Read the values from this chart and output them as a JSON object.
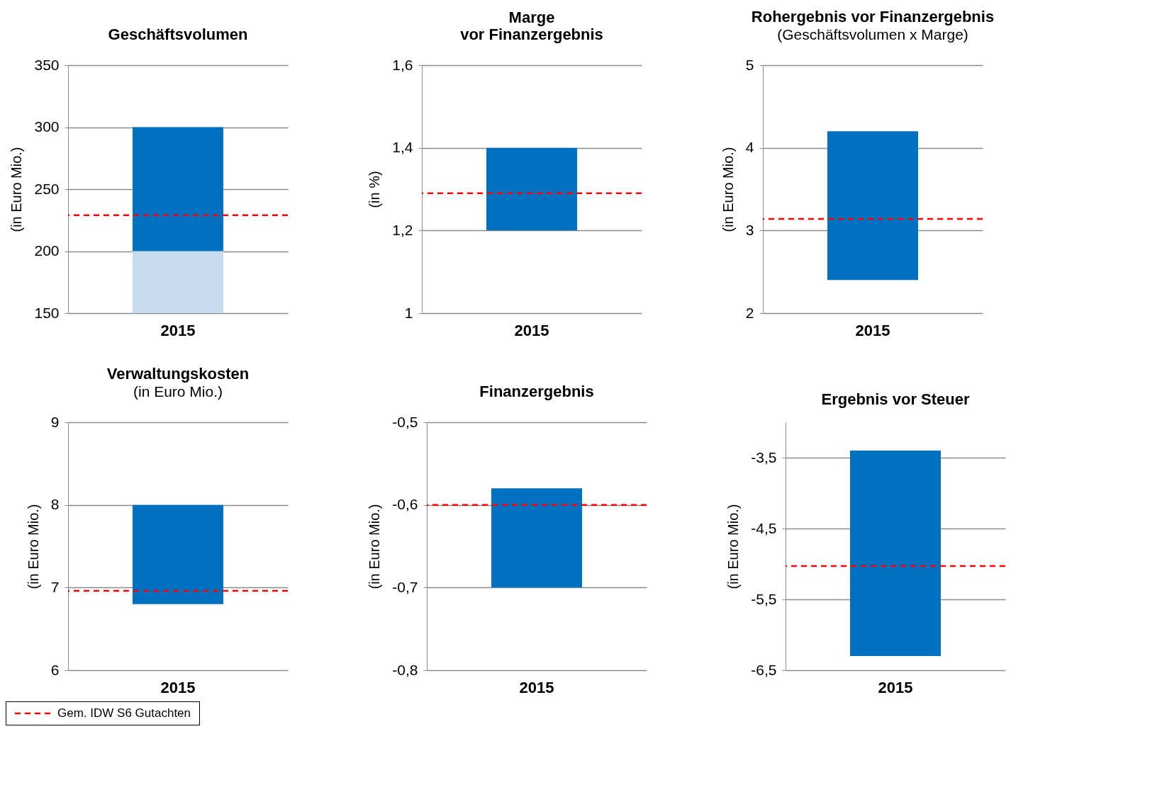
{
  "chart_data": [
    {
      "type": "bar",
      "title": "Geschäftsvolumen",
      "ylabel": "(in Euro Mio.)",
      "categories": [
        "2015"
      ],
      "series": [
        {
          "color": "#c9dcee",
          "base": [
            150
          ],
          "values": [
            50
          ]
        },
        {
          "color": "#0070c0",
          "base": [
            200
          ],
          "values": [
            100
          ]
        }
      ],
      "ylim": [
        150,
        350
      ],
      "yticks": [
        150,
        200,
        250,
        300,
        350
      ],
      "grid": "y",
      "ref_lines": [
        {
          "axis": "y",
          "value": 229,
          "label": "Gem. IDW S6  Gutachten",
          "color": "#ff0000",
          "line_style": "dashed"
        }
      ],
      "legend": "bottom left"
    },
    {
      "type": "bar",
      "title": [
        "Marge",
        "vor Finanzergebnis"
      ],
      "ylabel": "(in %)",
      "categories": [
        "2015"
      ],
      "base": [
        1.2
      ],
      "values": [
        0.2
      ],
      "color": "#0070c0",
      "ylim": [
        1,
        1.6
      ],
      "yticks": [
        1,
        {
          "value": 1.2,
          "label": "1,2"
        },
        {
          "value": 1.4,
          "label": "1,4"
        },
        {
          "value": 1.6,
          "label": "1,6"
        }
      ],
      "grid": "y",
      "ref_lines": [
        {
          "axis": "y",
          "value": 1.29,
          "color": "#ff0000",
          "line_style": "dashed"
        }
      ]
    },
    {
      "type": "bar",
      "title": "Rohergebnis vor Finanzergebnis",
      "subtitle": "(Geschäftsvolumen x Marge)",
      "ylabel": "(in Euro Mio.)",
      "categories": [
        "2015"
      ],
      "base": [
        2.4
      ],
      "values": [
        1.8
      ],
      "color": "#0070c0",
      "ylim": [
        2,
        5
      ],
      "yticks": [
        2,
        3,
        4,
        5
      ],
      "grid": "y",
      "ref_lines": [
        {
          "axis": "y",
          "value": 3.14,
          "color": "#ff0000",
          "line_style": "dashed"
        }
      ]
    },
    {
      "type": "bar",
      "title": "Verwaltungskosten",
      "subtitle": "(in Euro Mio.)",
      "ylabel": "(in Euro Mio.)",
      "categories": [
        "2015"
      ],
      "base": [
        6.8
      ],
      "values": [
        1.2
      ],
      "color": "#0070c0",
      "ylim": [
        6,
        9
      ],
      "yticks": [
        6,
        7,
        8,
        9
      ],
      "grid": "y",
      "ref_lines": [
        {
          "axis": "y",
          "value": 6.96,
          "color": "#ff0000",
          "line_style": "dashed"
        }
      ]
    },
    {
      "type": "bar",
      "title": "Finanzergebnis",
      "ylabel": "(in Euro Mio.)",
      "categories": [
        "2015"
      ],
      "base": [
        -0.7
      ],
      "values": [
        0.12
      ],
      "color": "#0070c0",
      "ylim": [
        -0.8,
        -0.5
      ],
      "yticks": [
        {
          "value": -0.8,
          "label": "-0,8"
        },
        {
          "value": -0.7,
          "label": "-0,7"
        },
        {
          "value": -0.6,
          "label": "-0,6"
        },
        {
          "value": -0.5,
          "label": "-0,5"
        }
      ],
      "grid": "y",
      "ref_lines": [
        {
          "axis": "y",
          "value": -0.6,
          "color": "#ff0000",
          "line_style": "dashed"
        }
      ]
    },
    {
      "type": "bar",
      "title": "Ergebnis vor Steuer",
      "ylabel": "(in Euro Mio.)",
      "categories": [
        "2015"
      ],
      "base": [
        -6.3
      ],
      "values": [
        2.9
      ],
      "color": "#0070c0",
      "ylim": [
        -6.5,
        -3.0
      ],
      "yticks": [
        {
          "value": -6.5,
          "label": "-6,5"
        },
        {
          "value": -5.5,
          "label": "-5,5"
        },
        {
          "value": -4.5,
          "label": "-4,5"
        },
        {
          "value": -3.5,
          "label": "-3,5"
        }
      ],
      "grid": "y",
      "ref_lines": [
        {
          "axis": "y",
          "value": -5.03,
          "color": "#ff0000",
          "line_style": "dashed"
        }
      ]
    }
  ]
}
